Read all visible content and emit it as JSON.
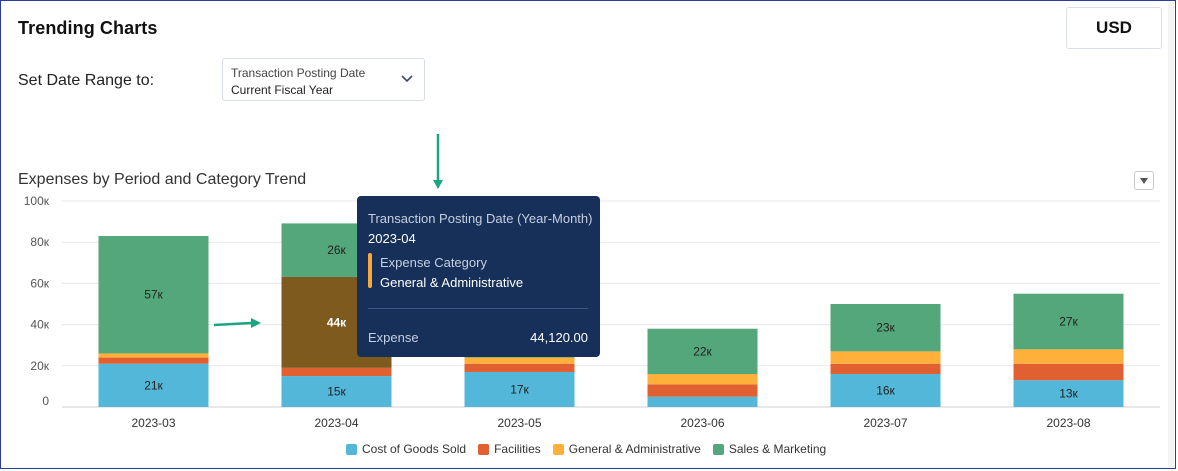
{
  "header": {
    "title": "Trending Charts",
    "currency": "USD"
  },
  "filters": {
    "label": "Set Date Range to:",
    "select_line1": "Transaction Posting Date",
    "select_line2": "Current Fiscal Year"
  },
  "chart_title": "Expenses by Period and Category Trend",
  "tooltip": {
    "title": "Transaction Posting Date (Year-Month)",
    "date": "2023-04",
    "category_label": "Expense Category",
    "category": "General & Administrative",
    "metric": "Expense",
    "value": "44,120.00"
  },
  "chart_data": {
    "type": "bar",
    "stacked": true,
    "title": "Expenses by Period and Category Trend",
    "categories": [
      "2023-03",
      "2023-04",
      "2023-05",
      "2023-06",
      "2023-07",
      "2023-08"
    ],
    "series": [
      {
        "name": "Cost of Goods Sold",
        "color": "#52b7d8",
        "values": [
          21000,
          15000,
          17000,
          5000,
          16000,
          13000
        ],
        "labels": [
          "21к",
          "15к",
          "17к",
          "",
          "16к",
          "13к"
        ]
      },
      {
        "name": "Facilities",
        "color": "#e16032",
        "values": [
          3000,
          4000,
          4000,
          6000,
          5000,
          8000
        ],
        "labels": [
          "",
          "",
          "",
          "",
          "",
          ""
        ]
      },
      {
        "name": "General & Administrative",
        "color": "#ffb03b",
        "values": [
          2000,
          44120,
          3000,
          5000,
          6000,
          7000
        ],
        "labels": [
          "",
          "44к",
          "",
          "",
          "",
          ""
        ]
      },
      {
        "name": "Sales & Marketing",
        "color": "#54a77b",
        "values": [
          57000,
          26000,
          11000,
          22000,
          23000,
          27000
        ],
        "labels": [
          "57к",
          "26к",
          "",
          "22к",
          "23к",
          "27к"
        ]
      }
    ],
    "highlight": {
      "category": "2023-04",
      "series": "General & Administrative",
      "color": "#7f5a1e"
    },
    "y_ticks": [
      {
        "value": 0,
        "label": "0"
      },
      {
        "value": 20000,
        "label": "20к"
      },
      {
        "value": 40000,
        "label": "40к"
      },
      {
        "value": 60000,
        "label": "60к"
      },
      {
        "value": 80000,
        "label": "80к"
      },
      {
        "value": 100000,
        "label": "100к"
      }
    ],
    "ylim": [
      0,
      100000
    ],
    "grid": true,
    "legend": "bottom"
  }
}
